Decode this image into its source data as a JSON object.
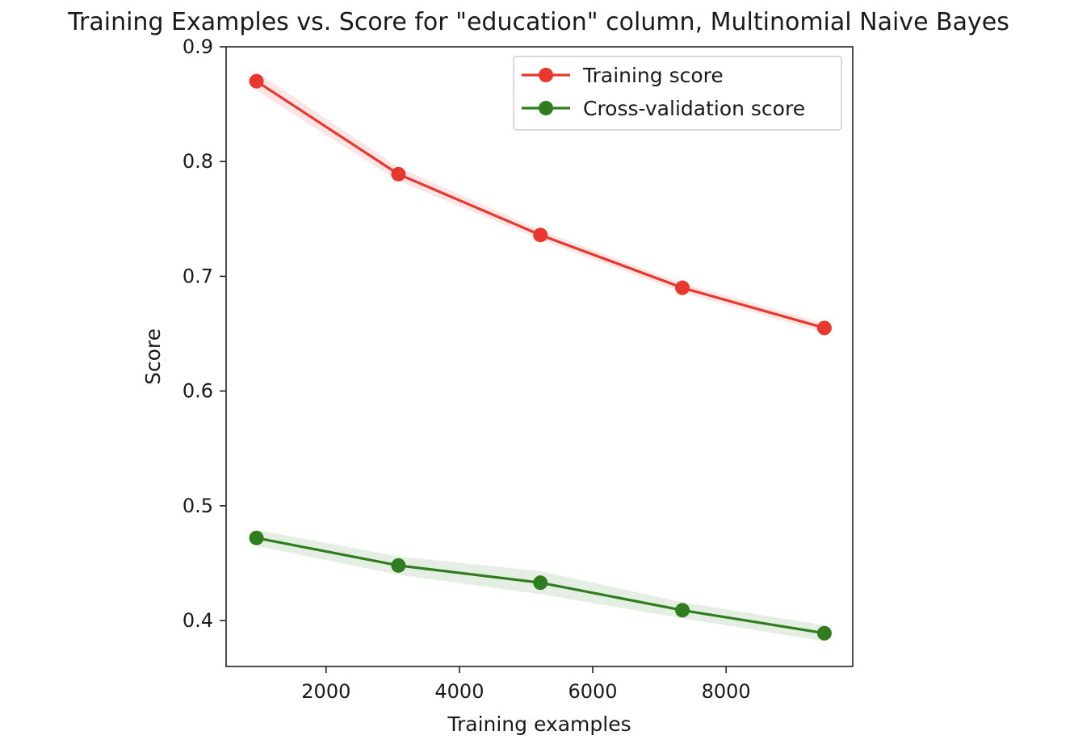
{
  "chart_data": {
    "type": "line",
    "title": "Training Examples vs. Score for \"education\" column, Multinomial Naive Bayes",
    "xlabel": "Training examples",
    "ylabel": "Score",
    "xlim": [
      500,
      9900
    ],
    "ylim": [
      0.36,
      0.9
    ],
    "x_ticks": [
      2000,
      4000,
      6000,
      8000
    ],
    "y_ticks": [
      0.4,
      0.5,
      0.6,
      0.7,
      0.8,
      0.9
    ],
    "x_tick_labels": [
      "2000",
      "4000",
      "6000",
      "8000"
    ],
    "y_tick_labels": [
      "0.4",
      "0.5",
      "0.6",
      "0.7",
      "0.8",
      "0.9"
    ],
    "grid": false,
    "legend_position": "top-right",
    "x": [
      955,
      3085,
      5215,
      7345,
      9475
    ],
    "series": [
      {
        "name": "Training score",
        "color": "#e8372e",
        "values": [
          0.87,
          0.789,
          0.736,
          0.69,
          0.655
        ],
        "band_lower": [
          0.862,
          0.783,
          0.732,
          0.686,
          0.651
        ],
        "band_upper": [
          0.878,
          0.795,
          0.74,
          0.694,
          0.659
        ]
      },
      {
        "name": "Cross-validation score",
        "color": "#2f7d1f",
        "values": [
          0.472,
          0.448,
          0.433,
          0.409,
          0.389
        ],
        "band_lower": [
          0.465,
          0.44,
          0.423,
          0.402,
          0.382
        ],
        "band_upper": [
          0.479,
          0.456,
          0.443,
          0.416,
          0.396
        ]
      }
    ]
  }
}
